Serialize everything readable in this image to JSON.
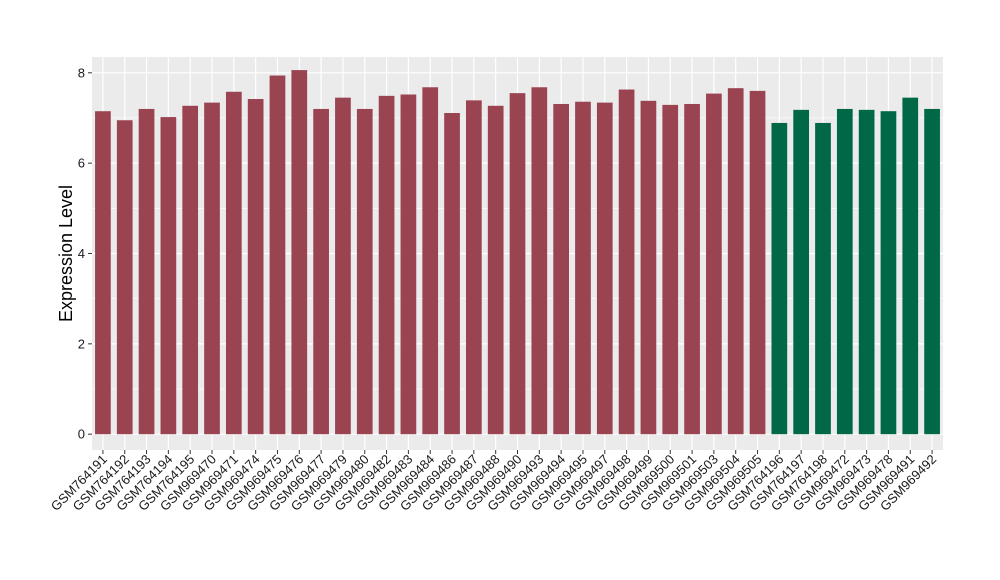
{
  "chart_data": {
    "type": "bar",
    "title": "",
    "xlabel": "",
    "ylabel": "Expression Level",
    "ylim": [
      -0.35,
      8.35
    ],
    "yticks": [
      0,
      2,
      4,
      6,
      8
    ],
    "grid": true,
    "legend": "none",
    "colors": {
      "panel_background": "#EBEBEB",
      "grid_line": "#FFFFFF",
      "group_a": "#9B4451",
      "group_b": "#006847"
    },
    "categories": [
      "GSM764191",
      "GSM764192",
      "GSM764193",
      "GSM764194",
      "GSM764195",
      "GSM969470",
      "GSM969471",
      "GSM969474",
      "GSM969475",
      "GSM969476",
      "GSM969477",
      "GSM969479",
      "GSM969480",
      "GSM969482",
      "GSM969483",
      "GSM969484",
      "GSM969486",
      "GSM969487",
      "GSM969488",
      "GSM969490",
      "GSM969493",
      "GSM969494",
      "GSM969495",
      "GSM969497",
      "GSM969498",
      "GSM969499",
      "GSM969500",
      "GSM969501",
      "GSM969503",
      "GSM969504",
      "GSM969505",
      "GSM764196",
      "GSM764197",
      "GSM764198",
      "GSM969472",
      "GSM969473",
      "GSM969478",
      "GSM969491",
      "GSM969492"
    ],
    "values": [
      7.15,
      6.95,
      7.2,
      7.02,
      7.27,
      7.34,
      7.58,
      7.42,
      7.94,
      8.06,
      7.2,
      7.45,
      7.2,
      7.49,
      7.52,
      7.68,
      7.11,
      7.39,
      7.27,
      7.55,
      7.68,
      7.31,
      7.36,
      7.34,
      7.63,
      7.38,
      7.29,
      7.31,
      7.54,
      7.66,
      7.6,
      6.89,
      7.18,
      6.89,
      7.2,
      7.18,
      7.15,
      7.45,
      7.2
    ],
    "groups": [
      "a",
      "a",
      "a",
      "a",
      "a",
      "a",
      "a",
      "a",
      "a",
      "a",
      "a",
      "a",
      "a",
      "a",
      "a",
      "a",
      "a",
      "a",
      "a",
      "a",
      "a",
      "a",
      "a",
      "a",
      "a",
      "a",
      "a",
      "a",
      "a",
      "a",
      "a",
      "b",
      "b",
      "b",
      "b",
      "b",
      "b",
      "b",
      "b"
    ]
  }
}
